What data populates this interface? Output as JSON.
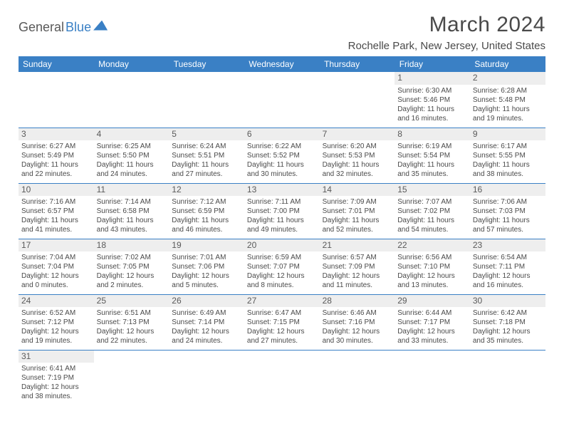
{
  "logo": {
    "part1": "General",
    "part2": "Blue"
  },
  "title": "March 2024",
  "subtitle": "Rochelle Park, New Jersey, United States",
  "day_headers": [
    "Sunday",
    "Monday",
    "Tuesday",
    "Wednesday",
    "Thursday",
    "Friday",
    "Saturday"
  ],
  "colors": {
    "accent": "#3a80c5",
    "header_bg": "#3a80c5",
    "daynum_bg": "#eeeeee",
    "text": "#4a4a4a"
  },
  "weeks": [
    [
      {
        "n": "",
        "empty": true
      },
      {
        "n": "",
        "empty": true
      },
      {
        "n": "",
        "empty": true
      },
      {
        "n": "",
        "empty": true
      },
      {
        "n": "",
        "empty": true
      },
      {
        "n": "1",
        "sr": "Sunrise: 6:30 AM",
        "ss": "Sunset: 5:46 PM",
        "d1": "Daylight: 11 hours",
        "d2": "and 16 minutes."
      },
      {
        "n": "2",
        "sr": "Sunrise: 6:28 AM",
        "ss": "Sunset: 5:48 PM",
        "d1": "Daylight: 11 hours",
        "d2": "and 19 minutes."
      }
    ],
    [
      {
        "n": "3",
        "sr": "Sunrise: 6:27 AM",
        "ss": "Sunset: 5:49 PM",
        "d1": "Daylight: 11 hours",
        "d2": "and 22 minutes."
      },
      {
        "n": "4",
        "sr": "Sunrise: 6:25 AM",
        "ss": "Sunset: 5:50 PM",
        "d1": "Daylight: 11 hours",
        "d2": "and 24 minutes."
      },
      {
        "n": "5",
        "sr": "Sunrise: 6:24 AM",
        "ss": "Sunset: 5:51 PM",
        "d1": "Daylight: 11 hours",
        "d2": "and 27 minutes."
      },
      {
        "n": "6",
        "sr": "Sunrise: 6:22 AM",
        "ss": "Sunset: 5:52 PM",
        "d1": "Daylight: 11 hours",
        "d2": "and 30 minutes."
      },
      {
        "n": "7",
        "sr": "Sunrise: 6:20 AM",
        "ss": "Sunset: 5:53 PM",
        "d1": "Daylight: 11 hours",
        "d2": "and 32 minutes."
      },
      {
        "n": "8",
        "sr": "Sunrise: 6:19 AM",
        "ss": "Sunset: 5:54 PM",
        "d1": "Daylight: 11 hours",
        "d2": "and 35 minutes."
      },
      {
        "n": "9",
        "sr": "Sunrise: 6:17 AM",
        "ss": "Sunset: 5:55 PM",
        "d1": "Daylight: 11 hours",
        "d2": "and 38 minutes."
      }
    ],
    [
      {
        "n": "10",
        "sr": "Sunrise: 7:16 AM",
        "ss": "Sunset: 6:57 PM",
        "d1": "Daylight: 11 hours",
        "d2": "and 41 minutes."
      },
      {
        "n": "11",
        "sr": "Sunrise: 7:14 AM",
        "ss": "Sunset: 6:58 PM",
        "d1": "Daylight: 11 hours",
        "d2": "and 43 minutes."
      },
      {
        "n": "12",
        "sr": "Sunrise: 7:12 AM",
        "ss": "Sunset: 6:59 PM",
        "d1": "Daylight: 11 hours",
        "d2": "and 46 minutes."
      },
      {
        "n": "13",
        "sr": "Sunrise: 7:11 AM",
        "ss": "Sunset: 7:00 PM",
        "d1": "Daylight: 11 hours",
        "d2": "and 49 minutes."
      },
      {
        "n": "14",
        "sr": "Sunrise: 7:09 AM",
        "ss": "Sunset: 7:01 PM",
        "d1": "Daylight: 11 hours",
        "d2": "and 52 minutes."
      },
      {
        "n": "15",
        "sr": "Sunrise: 7:07 AM",
        "ss": "Sunset: 7:02 PM",
        "d1": "Daylight: 11 hours",
        "d2": "and 54 minutes."
      },
      {
        "n": "16",
        "sr": "Sunrise: 7:06 AM",
        "ss": "Sunset: 7:03 PM",
        "d1": "Daylight: 11 hours",
        "d2": "and 57 minutes."
      }
    ],
    [
      {
        "n": "17",
        "sr": "Sunrise: 7:04 AM",
        "ss": "Sunset: 7:04 PM",
        "d1": "Daylight: 12 hours",
        "d2": "and 0 minutes."
      },
      {
        "n": "18",
        "sr": "Sunrise: 7:02 AM",
        "ss": "Sunset: 7:05 PM",
        "d1": "Daylight: 12 hours",
        "d2": "and 2 minutes."
      },
      {
        "n": "19",
        "sr": "Sunrise: 7:01 AM",
        "ss": "Sunset: 7:06 PM",
        "d1": "Daylight: 12 hours",
        "d2": "and 5 minutes."
      },
      {
        "n": "20",
        "sr": "Sunrise: 6:59 AM",
        "ss": "Sunset: 7:07 PM",
        "d1": "Daylight: 12 hours",
        "d2": "and 8 minutes."
      },
      {
        "n": "21",
        "sr": "Sunrise: 6:57 AM",
        "ss": "Sunset: 7:09 PM",
        "d1": "Daylight: 12 hours",
        "d2": "and 11 minutes."
      },
      {
        "n": "22",
        "sr": "Sunrise: 6:56 AM",
        "ss": "Sunset: 7:10 PM",
        "d1": "Daylight: 12 hours",
        "d2": "and 13 minutes."
      },
      {
        "n": "23",
        "sr": "Sunrise: 6:54 AM",
        "ss": "Sunset: 7:11 PM",
        "d1": "Daylight: 12 hours",
        "d2": "and 16 minutes."
      }
    ],
    [
      {
        "n": "24",
        "sr": "Sunrise: 6:52 AM",
        "ss": "Sunset: 7:12 PM",
        "d1": "Daylight: 12 hours",
        "d2": "and 19 minutes."
      },
      {
        "n": "25",
        "sr": "Sunrise: 6:51 AM",
        "ss": "Sunset: 7:13 PM",
        "d1": "Daylight: 12 hours",
        "d2": "and 22 minutes."
      },
      {
        "n": "26",
        "sr": "Sunrise: 6:49 AM",
        "ss": "Sunset: 7:14 PM",
        "d1": "Daylight: 12 hours",
        "d2": "and 24 minutes."
      },
      {
        "n": "27",
        "sr": "Sunrise: 6:47 AM",
        "ss": "Sunset: 7:15 PM",
        "d1": "Daylight: 12 hours",
        "d2": "and 27 minutes."
      },
      {
        "n": "28",
        "sr": "Sunrise: 6:46 AM",
        "ss": "Sunset: 7:16 PM",
        "d1": "Daylight: 12 hours",
        "d2": "and 30 minutes."
      },
      {
        "n": "29",
        "sr": "Sunrise: 6:44 AM",
        "ss": "Sunset: 7:17 PM",
        "d1": "Daylight: 12 hours",
        "d2": "and 33 minutes."
      },
      {
        "n": "30",
        "sr": "Sunrise: 6:42 AM",
        "ss": "Sunset: 7:18 PM",
        "d1": "Daylight: 12 hours",
        "d2": "and 35 minutes."
      }
    ],
    [
      {
        "n": "31",
        "sr": "Sunrise: 6:41 AM",
        "ss": "Sunset: 7:19 PM",
        "d1": "Daylight: 12 hours",
        "d2": "and 38 minutes."
      },
      {
        "n": "",
        "empty": true
      },
      {
        "n": "",
        "empty": true
      },
      {
        "n": "",
        "empty": true
      },
      {
        "n": "",
        "empty": true
      },
      {
        "n": "",
        "empty": true
      },
      {
        "n": "",
        "empty": true
      }
    ]
  ]
}
